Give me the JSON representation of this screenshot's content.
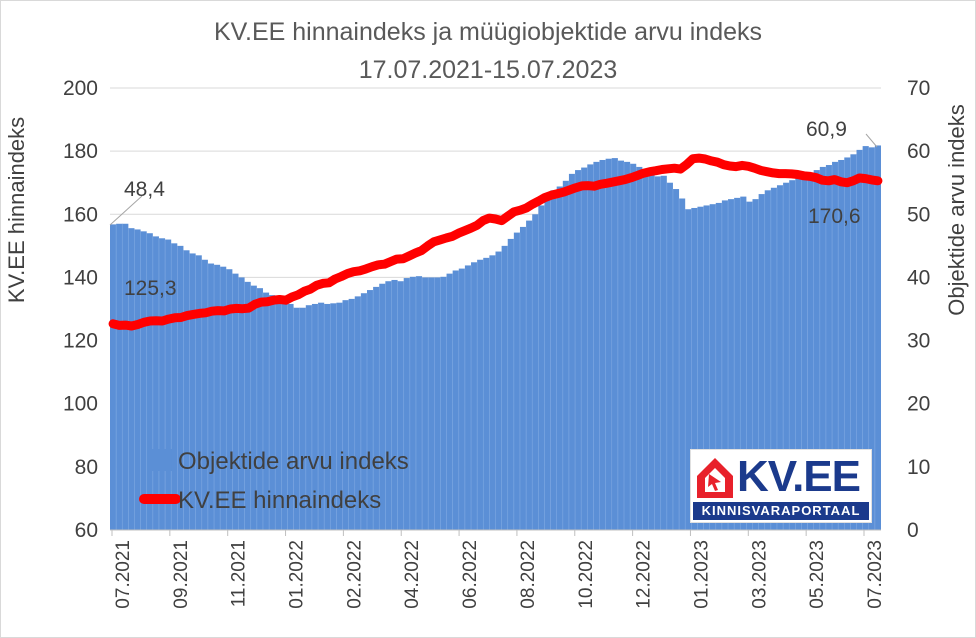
{
  "chart_data": {
    "type": "bar+line",
    "title": "KV.EE hinnaindeks ja müügiobjektide arvu indeks",
    "subtitle": "17.07.2021-15.07.2023",
    "y_left_label": "KV.EE hinnaindeks",
    "y_right_label": "Objektide arvu indeks",
    "y_left_range": [
      60,
      200
    ],
    "y_right_range": [
      0,
      70
    ],
    "y_left_ticks": [
      "60",
      "80",
      "100",
      "120",
      "140",
      "160",
      "180",
      "200"
    ],
    "y_right_ticks": [
      "0",
      "10",
      "20",
      "30",
      "40",
      "50",
      "60",
      "70"
    ],
    "x_ticks": [
      "07.2021",
      "09.2021",
      "11.2021",
      "01.2022",
      "02.2022",
      "04.2022",
      "06.2022",
      "08.2022",
      "10.2022",
      "12.2022",
      "01.2023",
      "03.2023",
      "05.2023",
      "07.2023"
    ],
    "grid": true,
    "legend_position": "bottom-left",
    "series": [
      {
        "name": "Objektide arvu indeks",
        "kind": "bar",
        "axis": "right",
        "color": "#5b8fd6",
        "values": [
          48.4,
          48.5,
          48.5,
          47.8,
          47.6,
          47.3,
          47.0,
          46.5,
          46.2,
          46.0,
          45.4,
          45.0,
          44.3,
          43.8,
          43.5,
          42.8,
          42.2,
          42.0,
          41.7,
          41.3,
          40.6,
          40.0,
          39.3,
          38.7,
          38.3,
          37.6,
          37.2,
          37.0,
          36.6,
          35.8,
          35.2,
          35.2,
          35.6,
          35.8,
          36.0,
          35.8,
          35.9,
          36.0,
          36.4,
          36.6,
          37.0,
          37.5,
          38.0,
          38.5,
          39.0,
          39.4,
          39.6,
          39.4,
          39.9,
          40.1,
          40.2,
          40.0,
          40.0,
          40.0,
          40.1,
          40.6,
          41.1,
          41.4,
          41.9,
          42.4,
          42.8,
          43.1,
          43.5,
          44.1,
          45.0,
          46.1,
          47.1,
          48.0,
          49.0,
          50.0,
          51.4,
          52.8,
          53.8,
          54.4,
          55.3,
          56.4,
          57.0,
          57.4,
          57.9,
          58.3,
          58.6,
          58.8,
          58.9,
          58.5,
          58.3,
          58.0,
          57.5,
          57.0,
          56.5,
          56.0,
          56.1,
          55.0,
          54.0,
          52.5,
          50.8,
          51.0,
          51.2,
          51.4,
          51.6,
          51.8,
          52.2,
          52.4,
          52.6,
          52.8,
          52.0,
          52.4,
          53.2,
          53.8,
          54.2,
          54.6,
          55.0,
          55.4,
          56.0,
          56.3,
          56.5,
          57.0,
          57.5,
          57.8,
          58.3,
          58.6,
          59.0,
          59.5,
          60.2,
          60.8,
          60.6,
          60.9
        ]
      },
      {
        "name": "KV.EE hinnaindeks",
        "kind": "line",
        "axis": "left",
        "color": "#ff0000",
        "values": [
          125.3,
          124.8,
          124.9,
          124.6,
          125.1,
          125.8,
          126.2,
          126.3,
          126.2,
          126.8,
          127.2,
          127.3,
          127.9,
          128.3,
          128.6,
          128.8,
          129.3,
          129.5,
          129.4,
          130.0,
          130.2,
          130.1,
          130.3,
          131.5,
          132.2,
          132.3,
          132.8,
          133.0,
          132.8,
          133.8,
          134.5,
          135.6,
          136.3,
          137.5,
          138.1,
          138.3,
          139.5,
          140.3,
          141.2,
          141.8,
          142.1,
          142.7,
          143.4,
          144.0,
          144.2,
          145.0,
          145.8,
          145.9,
          146.8,
          147.7,
          148.5,
          150.0,
          151.3,
          151.9,
          152.5,
          153.0,
          154.0,
          154.8,
          155.6,
          156.5,
          158.0,
          158.8,
          158.5,
          158.0,
          159.4,
          160.8,
          161.3,
          162.0,
          163.2,
          164.2,
          165.3,
          166.0,
          166.5,
          167.0,
          167.7,
          168.4,
          169.0,
          169.1,
          168.9,
          169.5,
          169.8,
          170.2,
          170.6,
          171.0,
          171.6,
          172.3,
          173.0,
          173.5,
          173.8,
          174.2,
          174.4,
          174.6,
          174.3,
          175.8,
          177.6,
          177.8,
          177.5,
          176.9,
          176.5,
          175.7,
          175.3,
          175.1,
          175.5,
          175.2,
          174.6,
          173.9,
          173.5,
          173.1,
          172.9,
          172.9,
          172.8,
          172.6,
          172.2,
          172.0,
          171.6,
          170.8,
          170.6,
          171.0,
          170.3,
          170.0,
          170.6,
          171.5,
          171.3,
          170.9,
          170.6
        ]
      }
    ],
    "annotations": [
      "48,4",
      "125,3",
      "60,9",
      "170,6"
    ]
  },
  "legend": {
    "bar_label": "Objektide arvu indeks",
    "line_label": "KV.EE hinnaindeks"
  },
  "logo": {
    "wordmark": "KV.EE",
    "tagline": "KINNISVARAPORTAAL"
  }
}
